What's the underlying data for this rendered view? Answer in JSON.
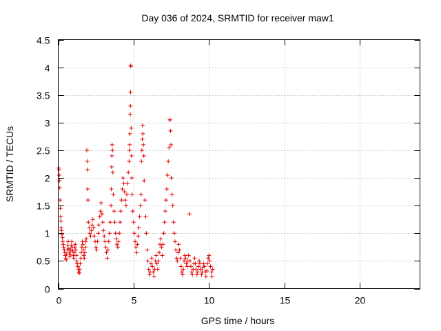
{
  "chart_data": {
    "type": "scatter",
    "title": "Day 036 of 2024, SRMTID for receiver maw1",
    "xlabel": "GPS time / hours",
    "ylabel": "SRMTID / TECUs",
    "xlim": [
      0,
      24
    ],
    "ylim": [
      0,
      4.5
    ],
    "xticks": [
      0,
      5,
      10,
      15,
      20
    ],
    "xtick_labels": [
      "0",
      "5",
      "10",
      "15",
      "20"
    ],
    "yticks": [
      0,
      0.5,
      1,
      1.5,
      2,
      2.5,
      3,
      3.5,
      4,
      4.5
    ],
    "ytick_labels": [
      "0",
      "0.5",
      "1",
      "1.5",
      "2",
      "2.5",
      "3",
      "3.5",
      "4",
      "4.5"
    ],
    "grid": true,
    "marker": "+",
    "colors": {
      "series": "#e00000",
      "grid": "#a0a0a0",
      "axis": "#000000"
    },
    "series": [
      {
        "name": "maw1",
        "points": [
          [
            0.02,
            2.18
          ],
          [
            0.05,
            2.15
          ],
          [
            0.07,
            2.05
          ],
          [
            0.08,
            1.95
          ],
          [
            0.1,
            1.82
          ],
          [
            0.12,
            1.6
          ],
          [
            0.14,
            1.45
          ],
          [
            0.16,
            1.3
          ],
          [
            0.18,
            1.22
          ],
          [
            0.2,
            1.1
          ],
          [
            0.22,
            1.05
          ],
          [
            0.25,
            0.98
          ],
          [
            0.28,
            0.92
          ],
          [
            0.3,
            0.85
          ],
          [
            0.33,
            0.8
          ],
          [
            0.36,
            0.75
          ],
          [
            0.4,
            0.7
          ],
          [
            0.43,
            0.65
          ],
          [
            0.46,
            0.6
          ],
          [
            0.5,
            0.55
          ],
          [
            0.53,
            0.52
          ],
          [
            0.56,
            0.62
          ],
          [
            0.6,
            0.7
          ],
          [
            0.63,
            0.78
          ],
          [
            0.66,
            0.85
          ],
          [
            0.7,
            0.72
          ],
          [
            0.73,
            0.65
          ],
          [
            0.76,
            0.58
          ],
          [
            0.8,
            0.62
          ],
          [
            0.83,
            0.7
          ],
          [
            0.86,
            0.78
          ],
          [
            0.9,
            0.85
          ],
          [
            0.93,
            0.75
          ],
          [
            0.96,
            0.68
          ],
          [
            1.0,
            0.6
          ],
          [
            1.03,
            0.55
          ],
          [
            1.06,
            0.65
          ],
          [
            1.1,
            0.75
          ],
          [
            1.13,
            0.8
          ],
          [
            1.16,
            0.7
          ],
          [
            1.2,
            0.6
          ],
          [
            1.23,
            0.5
          ],
          [
            1.26,
            0.45
          ],
          [
            1.3,
            0.4
          ],
          [
            1.33,
            0.35
          ],
          [
            1.36,
            0.3
          ],
          [
            1.4,
            0.28
          ],
          [
            1.43,
            0.35
          ],
          [
            1.46,
            0.45
          ],
          [
            1.5,
            0.55
          ],
          [
            1.53,
            0.65
          ],
          [
            1.56,
            0.75
          ],
          [
            1.6,
            0.85
          ],
          [
            1.63,
            0.8
          ],
          [
            1.66,
            0.7
          ],
          [
            1.7,
            0.6
          ],
          [
            1.73,
            0.55
          ],
          [
            1.76,
            0.65
          ],
          [
            1.8,
            0.75
          ],
          [
            1.83,
            0.85
          ],
          [
            1.86,
            0.9
          ],
          [
            1.9,
            2.5
          ],
          [
            1.92,
            2.3
          ],
          [
            1.94,
            2.15
          ],
          [
            1.96,
            1.8
          ],
          [
            1.98,
            1.6
          ],
          [
            2.0,
            1.2
          ],
          [
            2.05,
            1.1
          ],
          [
            2.1,
            1.0
          ],
          [
            2.15,
            0.95
          ],
          [
            2.2,
            1.05
          ],
          [
            2.25,
            1.15
          ],
          [
            2.3,
            1.25
          ],
          [
            2.35,
            1.1
          ],
          [
            2.4,
            0.95
          ],
          [
            2.45,
            0.85
          ],
          [
            2.5,
            0.75
          ],
          [
            2.55,
            0.7
          ],
          [
            2.6,
            0.85
          ],
          [
            2.65,
            1.0
          ],
          [
            2.7,
            1.15
          ],
          [
            2.75,
            1.3
          ],
          [
            2.8,
            1.4
          ],
          [
            2.85,
            1.55
          ],
          [
            2.9,
            1.35
          ],
          [
            2.95,
            1.2
          ],
          [
            3.0,
            1.05
          ],
          [
            3.05,
            0.95
          ],
          [
            3.1,
            0.85
          ],
          [
            3.15,
            0.75
          ],
          [
            3.2,
            0.65
          ],
          [
            3.25,
            0.55
          ],
          [
            3.3,
            0.7
          ],
          [
            3.35,
            0.85
          ],
          [
            3.4,
            1.0
          ],
          [
            3.45,
            1.2
          ],
          [
            3.5,
            1.5
          ],
          [
            3.52,
            1.8
          ],
          [
            3.54,
            2.2
          ],
          [
            3.56,
            2.4
          ],
          [
            3.58,
            2.6
          ],
          [
            3.6,
            2.5
          ],
          [
            3.62,
            2.1
          ],
          [
            3.65,
            1.7
          ],
          [
            3.7,
            1.4
          ],
          [
            3.75,
            1.2
          ],
          [
            3.8,
            1.0
          ],
          [
            3.85,
            0.9
          ],
          [
            3.9,
            0.8
          ],
          [
            3.95,
            0.75
          ],
          [
            4.0,
            0.85
          ],
          [
            4.05,
            1.0
          ],
          [
            4.1,
            1.2
          ],
          [
            4.15,
            1.4
          ],
          [
            4.2,
            1.6
          ],
          [
            4.25,
            1.8
          ],
          [
            4.3,
            2.0
          ],
          [
            4.35,
            1.9
          ],
          [
            4.4,
            1.75
          ],
          [
            4.45,
            1.6
          ],
          [
            4.5,
            1.5
          ],
          [
            4.55,
            1.7
          ],
          [
            4.6,
            1.9
          ],
          [
            4.65,
            2.1
          ],
          [
            4.7,
            2.3
          ],
          [
            4.72,
            2.5
          ],
          [
            4.74,
            2.6
          ],
          [
            4.76,
            2.8
          ],
          [
            4.78,
            3.15
          ],
          [
            4.79,
            3.3
          ],
          [
            4.8,
            3.55
          ],
          [
            4.81,
            4.02
          ],
          [
            4.82,
            4.03
          ],
          [
            4.84,
            2.9
          ],
          [
            4.86,
            2.4
          ],
          [
            4.88,
            2.0
          ],
          [
            4.9,
            1.7
          ],
          [
            4.95,
            1.4
          ],
          [
            5.0,
            1.2
          ],
          [
            5.05,
            1.0
          ],
          [
            5.1,
            0.85
          ],
          [
            5.15,
            0.75
          ],
          [
            5.2,
            0.65
          ],
          [
            5.25,
            0.8
          ],
          [
            5.3,
            0.95
          ],
          [
            5.35,
            1.1
          ],
          [
            5.4,
            1.3
          ],
          [
            5.45,
            1.5
          ],
          [
            5.5,
            1.7
          ],
          [
            5.52,
            2.3
          ],
          [
            5.55,
            2.5
          ],
          [
            5.58,
            2.7
          ],
          [
            5.6,
            2.95
          ],
          [
            5.62,
            2.8
          ],
          [
            5.65,
            2.6
          ],
          [
            5.68,
            2.4
          ],
          [
            5.7,
            1.95
          ],
          [
            5.75,
            1.6
          ],
          [
            5.8,
            1.3
          ],
          [
            5.85,
            1.0
          ],
          [
            5.9,
            0.7
          ],
          [
            5.95,
            0.5
          ],
          [
            6.0,
            0.35
          ],
          [
            6.05,
            0.25
          ],
          [
            6.1,
            0.3
          ],
          [
            6.15,
            0.45
          ],
          [
            6.2,
            0.55
          ],
          [
            6.25,
            0.4
          ],
          [
            6.3,
            0.3
          ],
          [
            6.35,
            0.22
          ],
          [
            6.4,
            0.35
          ],
          [
            6.45,
            0.5
          ],
          [
            6.5,
            0.6
          ],
          [
            6.55,
            0.45
          ],
          [
            6.6,
            0.35
          ],
          [
            6.65,
            0.5
          ],
          [
            6.7,
            0.65
          ],
          [
            6.75,
            0.8
          ],
          [
            6.8,
            0.9
          ],
          [
            6.85,
            0.75
          ],
          [
            6.9,
            0.6
          ],
          [
            6.95,
            0.8
          ],
          [
            7.0,
            1.0
          ],
          [
            7.05,
            1.2
          ],
          [
            7.1,
            1.4
          ],
          [
            7.15,
            1.6
          ],
          [
            7.2,
            1.8
          ],
          [
            7.25,
            2.05
          ],
          [
            7.3,
            2.3
          ],
          [
            7.35,
            2.55
          ],
          [
            7.4,
            3.05
          ],
          [
            7.42,
            3.05
          ],
          [
            7.45,
            2.85
          ],
          [
            7.48,
            2.6
          ],
          [
            7.5,
            2.0
          ],
          [
            7.55,
            1.7
          ],
          [
            7.6,
            1.5
          ],
          [
            7.65,
            1.2
          ],
          [
            7.7,
            1.0
          ],
          [
            7.75,
            0.85
          ],
          [
            7.8,
            0.7
          ],
          [
            7.85,
            0.55
          ],
          [
            7.9,
            0.5
          ],
          [
            7.95,
            0.65
          ],
          [
            8.0,
            0.8
          ],
          [
            8.05,
            0.7
          ],
          [
            8.1,
            0.55
          ],
          [
            8.15,
            0.4
          ],
          [
            8.2,
            0.3
          ],
          [
            8.25,
            0.25
          ],
          [
            8.3,
            0.35
          ],
          [
            8.35,
            0.5
          ],
          [
            8.4,
            0.6
          ],
          [
            8.45,
            0.55
          ],
          [
            8.5,
            0.45
          ],
          [
            8.55,
            0.4
          ],
          [
            8.6,
            0.5
          ],
          [
            8.65,
            0.6
          ],
          [
            8.7,
            1.35
          ],
          [
            8.75,
            0.5
          ],
          [
            8.8,
            0.4
          ],
          [
            8.85,
            0.3
          ],
          [
            8.9,
            0.25
          ],
          [
            8.95,
            0.35
          ],
          [
            9.0,
            0.45
          ],
          [
            9.05,
            0.55
          ],
          [
            9.1,
            0.45
          ],
          [
            9.15,
            0.35
          ],
          [
            9.2,
            0.25
          ],
          [
            9.25,
            0.3
          ],
          [
            9.3,
            0.4
          ],
          [
            9.35,
            0.5
          ],
          [
            9.4,
            0.45
          ],
          [
            9.45,
            0.35
          ],
          [
            9.5,
            0.25
          ],
          [
            9.55,
            0.3
          ],
          [
            9.6,
            0.38
          ],
          [
            9.65,
            0.45
          ],
          [
            9.7,
            0.4
          ],
          [
            9.75,
            0.3
          ],
          [
            9.8,
            0.22
          ],
          [
            9.85,
            0.32
          ],
          [
            9.9,
            0.45
          ],
          [
            9.95,
            0.55
          ],
          [
            10.0,
            0.6
          ],
          [
            10.05,
            0.5
          ],
          [
            10.1,
            0.4
          ],
          [
            10.15,
            0.3
          ],
          [
            10.2,
            0.22
          ],
          [
            10.25,
            0.35
          ]
        ]
      }
    ]
  }
}
